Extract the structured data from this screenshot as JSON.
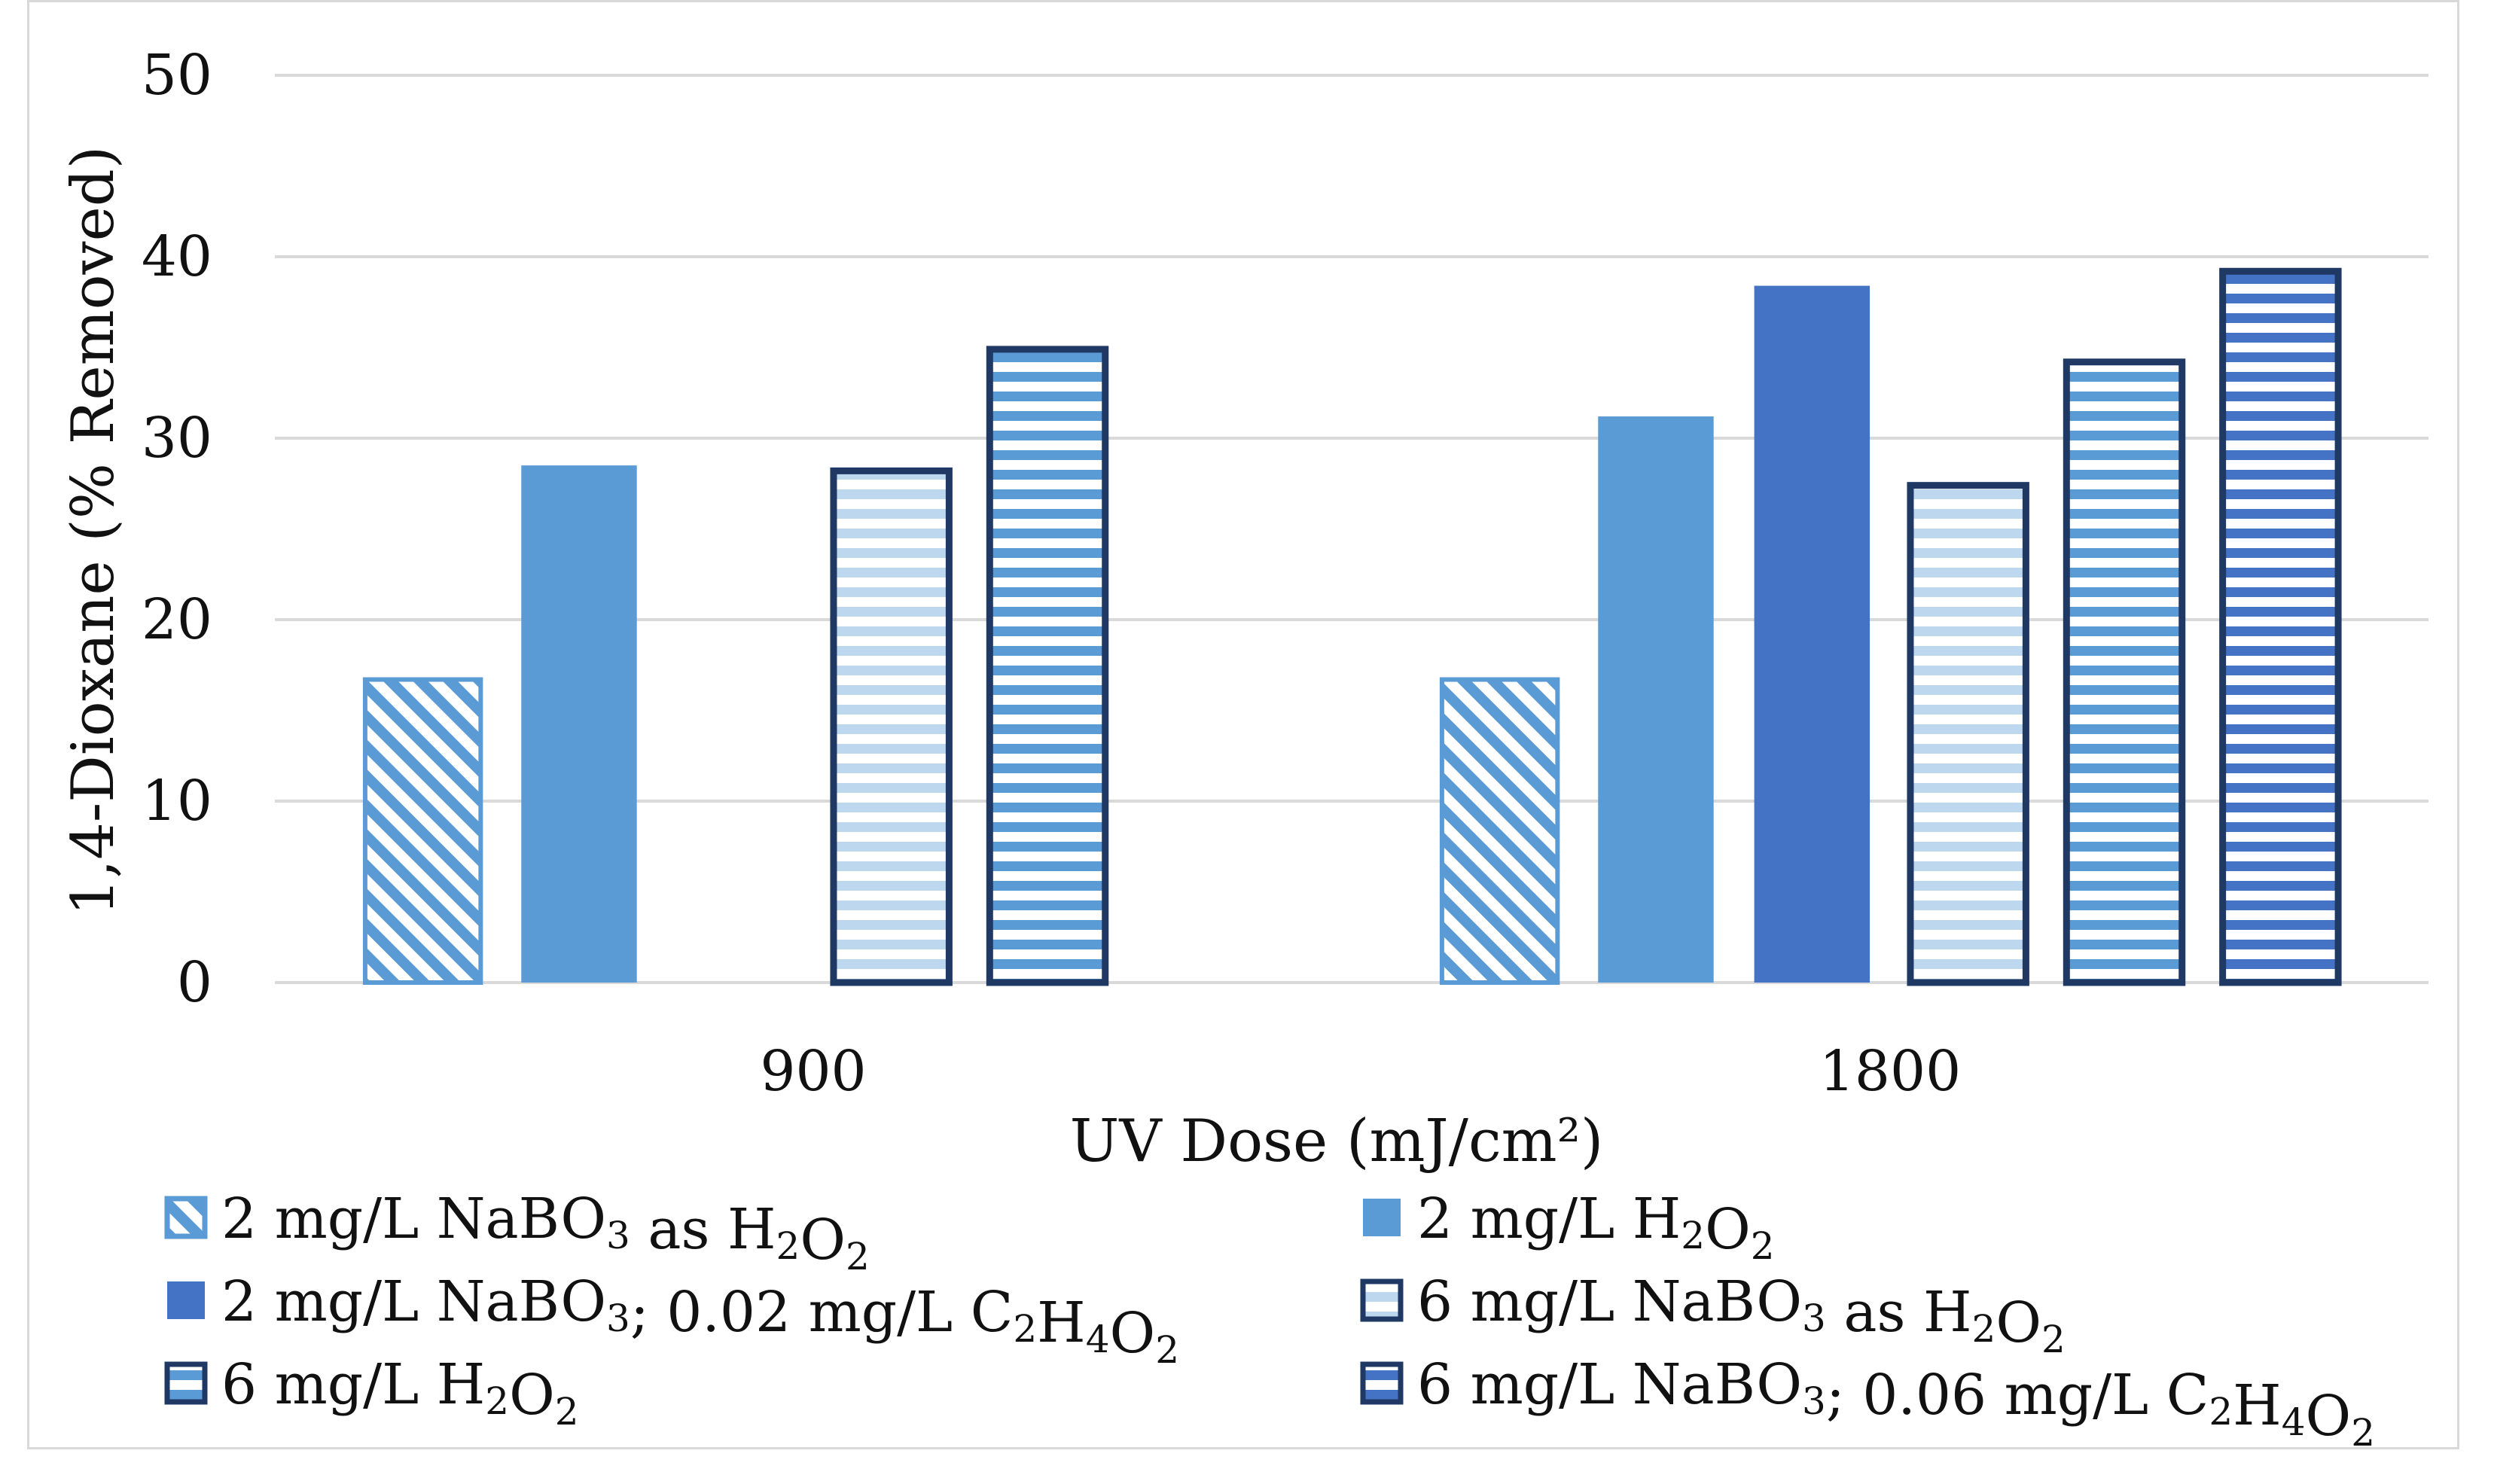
{
  "chart_data": {
    "type": "bar",
    "title": "",
    "xlabel": "UV Dose (mJ/cm²)",
    "ylabel": "1,4-Dioxane (% Removed)",
    "ylim": [
      0,
      50
    ],
    "yticks": [
      "0",
      "10",
      "20",
      "30",
      "40",
      "50"
    ],
    "categories": [
      "900",
      "1800"
    ],
    "grid": true,
    "legend_position": "bottom",
    "series": [
      {
        "name": "2 mg/L NaBO3 as H2O2",
        "fill": "hatch-diagonal",
        "color": "#5b9bd5",
        "values": [
          16.7,
          16.7
        ]
      },
      {
        "name": "2 mg/L H2O2",
        "fill": "solid",
        "color": "#5b9bd5",
        "values": [
          28.5,
          31.2
        ]
      },
      {
        "name": "2 mg/L NaBO3; 0.02 mg/L C2H4O2",
        "fill": "solid",
        "color": "#4472c4",
        "values": [
          null,
          38.4
        ]
      },
      {
        "name": "6 mg/L NaBO3 as H2O2",
        "fill": "stripe-light",
        "color": "#bdd7ee",
        "values": [
          28.2,
          27.4
        ]
      },
      {
        "name": "6 mg/L H2O2",
        "fill": "stripe-medium",
        "color": "#5b9bd5",
        "values": [
          34.9,
          34.2
        ]
      },
      {
        "name": "6 mg/L NaBO3; 0.06 mg/L C2H4O2",
        "fill": "stripe-dark",
        "color": "#4472c4",
        "values": [
          null,
          39.2
        ]
      }
    ]
  },
  "legend": [
    {
      "name": "legend-item-nabo3-2",
      "pre": "2 mg/L NaBO",
      "s1": "3",
      "mid": " as H",
      "s2": "2",
      "mid2": "O",
      "s3": "2",
      "post": ""
    },
    {
      "name": "legend-item-h2o2-2",
      "pre": "2 mg/L H",
      "s1": "2",
      "mid": "O",
      "s2": "2",
      "mid2": "",
      "s3": "",
      "post": ""
    },
    {
      "name": "legend-item-nabo3-2-acid",
      "pre": "2 mg/L NaBO",
      "s1": "3",
      "mid": "; 0.02 mg/L C",
      "s2": "2",
      "mid2": "H",
      "s3": "4",
      "post": "O",
      "s4": "2"
    },
    {
      "name": "legend-item-nabo3-6",
      "pre": "6 mg/L NaBO",
      "s1": "3",
      "mid": " as H",
      "s2": "2",
      "mid2": "O",
      "s3": "2",
      "post": ""
    },
    {
      "name": "legend-item-h2o2-6",
      "pre": "6 mg/L H",
      "s1": "2",
      "mid": "O",
      "s2": "2",
      "mid2": "",
      "s3": "",
      "post": ""
    },
    {
      "name": "legend-item-nabo3-6-acid",
      "pre": "6 mg/L NaBO",
      "s1": "3",
      "mid": "; 0.06 mg/L C",
      "s2": "2",
      "mid2": "H",
      "s3": "4",
      "post": "O",
      "s4": "2"
    }
  ]
}
